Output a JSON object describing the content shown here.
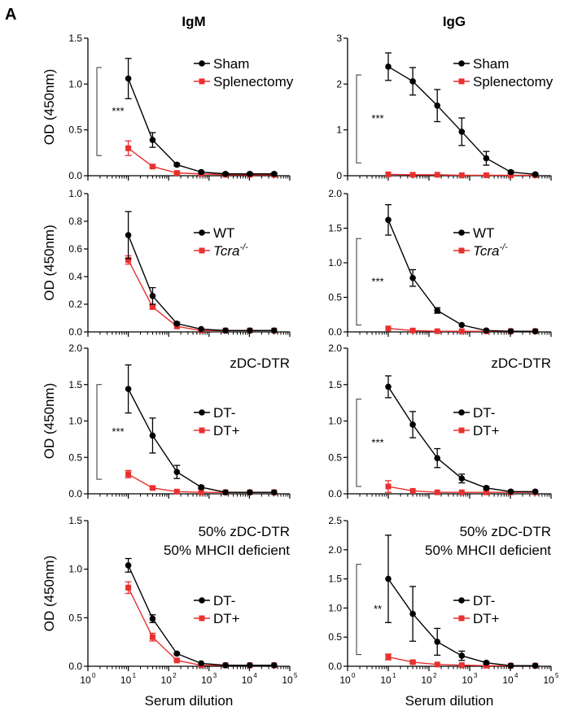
{
  "figure": {
    "panel_letter": "A",
    "column_titles": [
      "IgM",
      "IgG"
    ],
    "ylabel": "OD (450nm)",
    "xlabel": "Serum dilution",
    "colors": {
      "sham_wt_dtminus": "#000000",
      "treated": "#e8312f"
    }
  },
  "chart_data": [
    {
      "type": "line",
      "x_scale": "log",
      "x": [
        10,
        40,
        160,
        640,
        2560,
        10240,
        40960
      ],
      "xlim": [
        1,
        100000
      ],
      "ylim": [
        0,
        1.5
      ],
      "yticks": [
        0.0,
        0.5,
        1.0,
        1.5
      ],
      "ytick_labels": [
        "0.0",
        "0.5",
        "1.0",
        "1.5"
      ],
      "ylabel": "OD (450nm)",
      "xlabel": "",
      "title": "",
      "annotation": "",
      "sig": {
        "label": "***",
        "y_from": 0.22,
        "y_to": 1.18
      },
      "series": [
        {
          "name": "Sham",
          "color": "#000000",
          "marker": "circle",
          "values": [
            1.06,
            0.39,
            0.12,
            0.04,
            0.02,
            0.02,
            0.02
          ],
          "errors": [
            0.22,
            0.08,
            0.015,
            0.01,
            0.01,
            0.01,
            0.01
          ]
        },
        {
          "name": "Splenectomy",
          "color": "#e8312f",
          "marker": "square",
          "values": [
            0.3,
            0.1,
            0.03,
            0.02,
            0.01,
            0.01,
            0.01
          ],
          "errors": [
            0.08,
            0.015,
            0.01,
            0.01,
            0.005,
            0.005,
            0.005
          ]
        }
      ]
    },
    {
      "type": "line",
      "x_scale": "log",
      "x": [
        10,
        40,
        160,
        640,
        2560,
        10240,
        40960
      ],
      "xlim": [
        1,
        100000
      ],
      "ylim": [
        0,
        3
      ],
      "yticks": [
        0,
        1,
        2,
        3
      ],
      "ytick_labels": [
        "0",
        "1",
        "2",
        "3"
      ],
      "ylabel": "",
      "xlabel": "",
      "title": "",
      "annotation": "",
      "sig": {
        "label": "***",
        "y_from": 0.28,
        "y_to": 2.2
      },
      "series": [
        {
          "name": "Sham",
          "color": "#000000",
          "marker": "circle",
          "values": [
            2.38,
            2.06,
            1.53,
            0.96,
            0.38,
            0.08,
            0.03
          ],
          "errors": [
            0.3,
            0.3,
            0.35,
            0.3,
            0.15,
            0.03,
            0.02
          ]
        },
        {
          "name": "Splenectomy",
          "color": "#e8312f",
          "marker": "square",
          "values": [
            0.03,
            0.02,
            0.02,
            0.01,
            0.01,
            0.01,
            0.01
          ],
          "errors": [
            0.01,
            0.005,
            0.005,
            0.005,
            0.005,
            0.005,
            0.005
          ]
        }
      ]
    },
    {
      "type": "line",
      "x_scale": "log",
      "x": [
        10,
        40,
        160,
        640,
        2560,
        10240,
        40960
      ],
      "xlim": [
        1,
        100000
      ],
      "ylim": [
        0,
        1.0
      ],
      "yticks": [
        0.0,
        0.2,
        0.4,
        0.6,
        0.8,
        1.0
      ],
      "ytick_labels": [
        "0.0",
        "0.2",
        "0.4",
        "0.6",
        "0.8",
        "1.0"
      ],
      "ylabel": "OD (450nm)",
      "xlabel": "",
      "title": "",
      "annotation": "",
      "sig": null,
      "series": [
        {
          "name": "WT",
          "color": "#000000",
          "marker": "circle",
          "values": [
            0.7,
            0.26,
            0.06,
            0.02,
            0.01,
            0.01,
            0.01
          ],
          "errors": [
            0.17,
            0.06,
            0.01,
            0.005,
            0.005,
            0.005,
            0.005
          ]
        },
        {
          "name": "Tcra",
          "name_sup": "-/-",
          "italic": true,
          "color": "#e8312f",
          "marker": "square",
          "values": [
            0.52,
            0.18,
            0.04,
            0.01,
            0.01,
            0.01,
            0.01
          ],
          "errors": [
            0.03,
            0.01,
            0.005,
            0.005,
            0.005,
            0.005,
            0.005
          ]
        }
      ]
    },
    {
      "type": "line",
      "x_scale": "log",
      "x": [
        10,
        40,
        160,
        640,
        2560,
        10240,
        40960
      ],
      "xlim": [
        1,
        100000
      ],
      "ylim": [
        0,
        2.0
      ],
      "yticks": [
        0.0,
        0.5,
        1.0,
        1.5,
        2.0
      ],
      "ytick_labels": [
        "0.0",
        "0.5",
        "1.0",
        "1.5",
        "2.0"
      ],
      "ylabel": "",
      "xlabel": "",
      "title": "",
      "annotation": "",
      "sig": {
        "label": "***",
        "y_from": 0.1,
        "y_to": 1.35
      },
      "series": [
        {
          "name": "WT",
          "color": "#000000",
          "marker": "circle",
          "values": [
            1.62,
            0.78,
            0.31,
            0.1,
            0.02,
            0.01,
            0.01
          ],
          "errors": [
            0.22,
            0.12,
            0.04,
            0.01,
            0.005,
            0.005,
            0.005
          ]
        },
        {
          "name": "Tcra",
          "name_sup": "-/-",
          "italic": true,
          "color": "#e8312f",
          "marker": "square",
          "values": [
            0.05,
            0.02,
            0.01,
            0.01,
            0.01,
            0.01,
            0.01
          ],
          "errors": [
            0.01,
            0.005,
            0.005,
            0.005,
            0.005,
            0.005,
            0.005
          ]
        }
      ]
    },
    {
      "type": "line",
      "x_scale": "log",
      "x": [
        10,
        40,
        160,
        640,
        2560,
        10240,
        40960
      ],
      "xlim": [
        1,
        100000
      ],
      "ylim": [
        0,
        2.0
      ],
      "yticks": [
        0.0,
        0.5,
        1.0,
        1.5,
        2.0
      ],
      "ytick_labels": [
        "0.0",
        "0.5",
        "1.0",
        "1.5",
        "2.0"
      ],
      "ylabel": "OD (450nm)",
      "xlabel": "",
      "title": "",
      "annotation": "zDC-DTR",
      "sig": {
        "label": "***",
        "y_from": 0.2,
        "y_to": 1.5
      },
      "series": [
        {
          "name": "DT-",
          "color": "#000000",
          "marker": "circle",
          "values": [
            1.44,
            0.8,
            0.3,
            0.09,
            0.02,
            0.02,
            0.02
          ],
          "errors": [
            0.33,
            0.24,
            0.09,
            0.02,
            0.01,
            0.01,
            0.01
          ]
        },
        {
          "name": "DT+",
          "color": "#e8312f",
          "marker": "square",
          "values": [
            0.27,
            0.08,
            0.03,
            0.02,
            0.02,
            0.02,
            0.02
          ],
          "errors": [
            0.05,
            0.015,
            0.01,
            0.005,
            0.005,
            0.005,
            0.005
          ]
        }
      ]
    },
    {
      "type": "line",
      "x_scale": "log",
      "x": [
        10,
        40,
        160,
        640,
        2560,
        10240,
        40960
      ],
      "xlim": [
        1,
        100000
      ],
      "ylim": [
        0,
        2.0
      ],
      "yticks": [
        0.0,
        0.5,
        1.0,
        1.5,
        2.0
      ],
      "ytick_labels": [
        "0.0",
        "0.5",
        "1.0",
        "1.5",
        "2.0"
      ],
      "ylabel": "",
      "xlabel": "",
      "title": "",
      "annotation": "zDC-DTR",
      "sig": {
        "label": "***",
        "y_from": 0.1,
        "y_to": 1.3
      },
      "series": [
        {
          "name": "DT-",
          "color": "#000000",
          "marker": "circle",
          "values": [
            1.47,
            0.95,
            0.49,
            0.21,
            0.08,
            0.03,
            0.03
          ],
          "errors": [
            0.15,
            0.18,
            0.13,
            0.06,
            0.02,
            0.01,
            0.01
          ]
        },
        {
          "name": "DT+",
          "color": "#e8312f",
          "marker": "square",
          "values": [
            0.1,
            0.04,
            0.02,
            0.02,
            0.02,
            0.02,
            0.02
          ],
          "errors": [
            0.08,
            0.01,
            0.005,
            0.005,
            0.005,
            0.005,
            0.005
          ]
        }
      ]
    },
    {
      "type": "line",
      "x_scale": "log",
      "x": [
        10,
        40,
        160,
        640,
        2560,
        10240,
        40960
      ],
      "xlim": [
        1,
        100000
      ],
      "ylim": [
        0,
        1.5
      ],
      "yticks": [
        0.0,
        0.5,
        1.0,
        1.5
      ],
      "ytick_labels": [
        "0.0",
        "0.5",
        "1.0",
        "1.5"
      ],
      "ylabel": "OD (450nm)",
      "xlabel": "Serum dilution",
      "title": "",
      "annotation": "50% zDC-DTR",
      "annotation2": "50% MHCII deficient",
      "sig": null,
      "series": [
        {
          "name": "DT-",
          "color": "#000000",
          "marker": "circle",
          "values": [
            1.04,
            0.49,
            0.13,
            0.03,
            0.01,
            0.01,
            0.01
          ],
          "errors": [
            0.07,
            0.04,
            0.01,
            0.005,
            0.005,
            0.005,
            0.005
          ]
        },
        {
          "name": "DT+",
          "color": "#e8312f",
          "marker": "square",
          "values": [
            0.81,
            0.3,
            0.06,
            0.01,
            0.01,
            0.01,
            0.01
          ],
          "errors": [
            0.06,
            0.04,
            0.01,
            0.005,
            0.005,
            0.005,
            0.005
          ]
        }
      ]
    },
    {
      "type": "line",
      "x_scale": "log",
      "x": [
        10,
        40,
        160,
        640,
        2560,
        10240,
        40960
      ],
      "xlim": [
        1,
        100000
      ],
      "ylim": [
        0,
        2.5
      ],
      "yticks": [
        0.0,
        0.5,
        1.0,
        1.5,
        2.0,
        2.5
      ],
      "ytick_labels": [
        "0.0",
        "0.5",
        "1.0",
        "1.5",
        "2.0",
        "2.5"
      ],
      "ylabel": "",
      "xlabel": "Serum dilution",
      "title": "",
      "annotation": "50% zDC-DTR",
      "annotation2": "50% MHCII deficient",
      "sig": {
        "label": "**",
        "y_from": 0.2,
        "y_to": 1.75
      },
      "series": [
        {
          "name": "DT-",
          "color": "#000000",
          "marker": "circle",
          "values": [
            1.5,
            0.9,
            0.42,
            0.18,
            0.06,
            0.01,
            0.01
          ],
          "errors": [
            0.75,
            0.47,
            0.23,
            0.08,
            0.02,
            0.005,
            0.005
          ]
        },
        {
          "name": "DT+",
          "color": "#e8312f",
          "marker": "square",
          "values": [
            0.16,
            0.07,
            0.03,
            0.02,
            0.01,
            0.01,
            0.01
          ],
          "errors": [
            0.05,
            0.02,
            0.01,
            0.005,
            0.005,
            0.005,
            0.005
          ]
        }
      ]
    }
  ]
}
